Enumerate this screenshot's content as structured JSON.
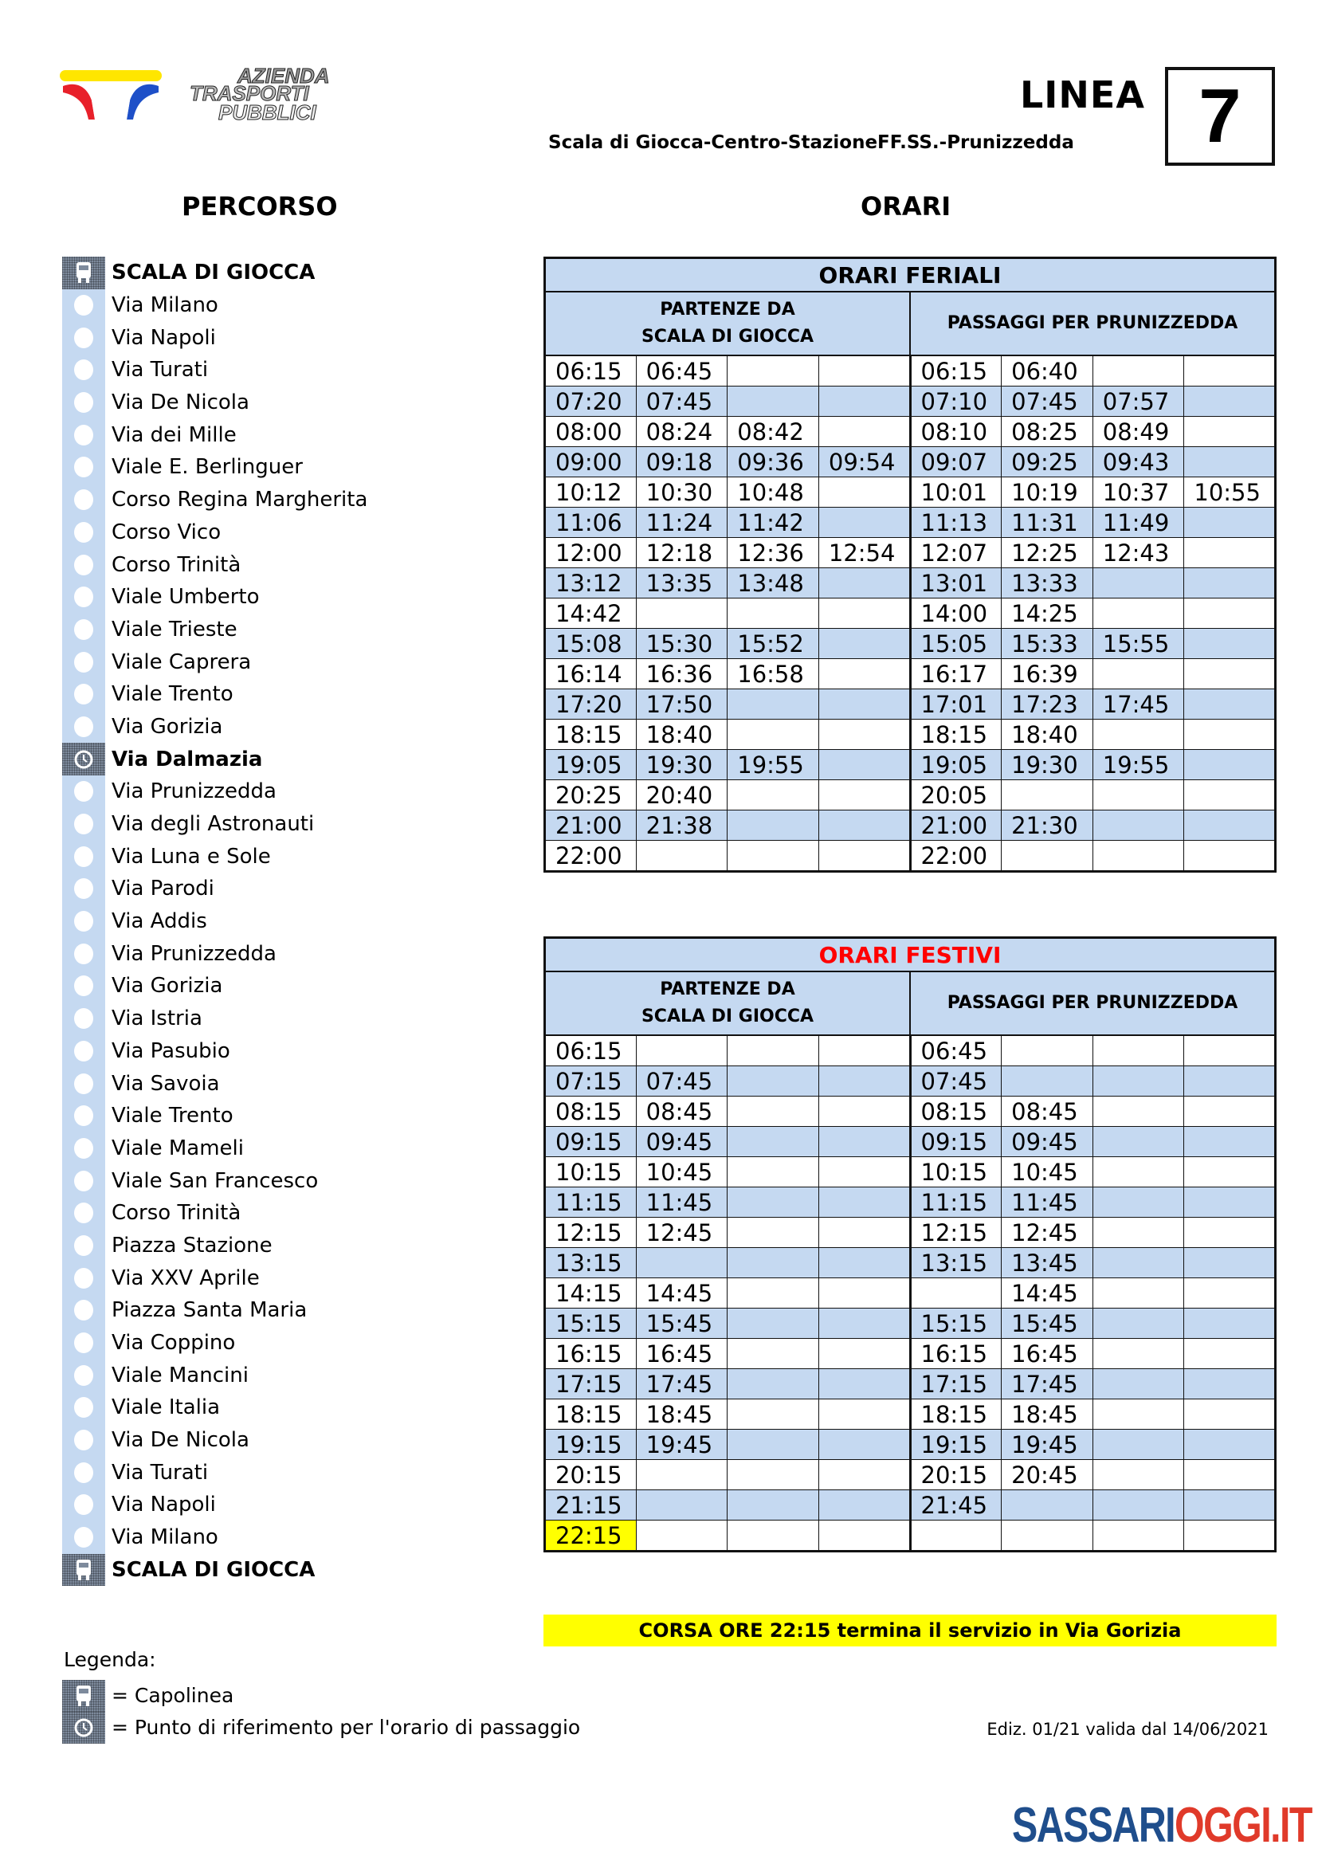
{
  "header": {
    "company_logo_text": "Azienda Trasporti Pubblici",
    "linea_label": "LINEA",
    "linea_number": "7",
    "route_name": "Scala di Giocca-Centro-StazioneFF.SS.-Prunizzedda"
  },
  "sections": {
    "percorso": "PERCORSO",
    "orari": "ORARI"
  },
  "colors": {
    "table_band": "#c5d9f1",
    "festivi_title": "#ff0000",
    "highlight": "#ffff00",
    "brand_blue": "#1f4e8c",
    "brand_red": "#e03a2a"
  },
  "stops": [
    {
      "name": "SCALA DI GIOCCA",
      "icon": "bus-icon",
      "bold": true
    },
    {
      "name": "Via Milano"
    },
    {
      "name": "Via Napoli"
    },
    {
      "name": "Via Turati"
    },
    {
      "name": "Via De Nicola"
    },
    {
      "name": "Via dei Mille"
    },
    {
      "name": "Viale E. Berlinguer"
    },
    {
      "name": "Corso Regina Margherita"
    },
    {
      "name": "Corso Vico"
    },
    {
      "name": "Corso Trinità"
    },
    {
      "name": "Viale Umberto"
    },
    {
      "name": "Viale Trieste"
    },
    {
      "name": "Viale Caprera"
    },
    {
      "name": "Viale Trento"
    },
    {
      "name": "Via Gorizia"
    },
    {
      "name": "Via Dalmazia",
      "icon": "clock-icon",
      "bold": true
    },
    {
      "name": "Via Prunizzedda"
    },
    {
      "name": "Via degli Astronauti"
    },
    {
      "name": "Via Luna e Sole"
    },
    {
      "name": "Via Parodi"
    },
    {
      "name": "Via Addis"
    },
    {
      "name": "Via Prunizzedda"
    },
    {
      "name": "Via Gorizia"
    },
    {
      "name": "Via Istria"
    },
    {
      "name": "Via Pasubio"
    },
    {
      "name": "Via Savoia"
    },
    {
      "name": "Viale Trento"
    },
    {
      "name": "Viale Mameli"
    },
    {
      "name": "Viale San Francesco"
    },
    {
      "name": "Corso Trinità"
    },
    {
      "name": "Piazza Stazione"
    },
    {
      "name": "Via XXV Aprile"
    },
    {
      "name": "Piazza Santa Maria"
    },
    {
      "name": "Via Coppino"
    },
    {
      "name": "Viale Mancini"
    },
    {
      "name": "Viale Italia"
    },
    {
      "name": "Via De Nicola"
    },
    {
      "name": "Via Turati"
    },
    {
      "name": "Via Napoli"
    },
    {
      "name": "Via Milano"
    },
    {
      "name": "SCALA DI GIOCCA",
      "icon": "bus-icon",
      "bold": true
    }
  ],
  "feriali": {
    "title": "ORARI FERIALI",
    "col_left": "PARTENZE DA\nSCALA DI GIOCCA",
    "col_right": "PASSAGGI PER PRUNIZZEDDA",
    "rows": [
      [
        "06:15",
        "06:45",
        "",
        "",
        "06:15",
        "06:40",
        "",
        ""
      ],
      [
        "07:20",
        "07:45",
        "",
        "",
        "07:10",
        "07:45",
        "07:57",
        ""
      ],
      [
        "08:00",
        "08:24",
        "08:42",
        "",
        "08:10",
        "08:25",
        "08:49",
        ""
      ],
      [
        "09:00",
        "09:18",
        "09:36",
        "09:54",
        "09:07",
        "09:25",
        "09:43",
        ""
      ],
      [
        "10:12",
        "10:30",
        "10:48",
        "",
        "10:01",
        "10:19",
        "10:37",
        "10:55"
      ],
      [
        "11:06",
        "11:24",
        "11:42",
        "",
        "11:13",
        "11:31",
        "11:49",
        ""
      ],
      [
        "12:00",
        "12:18",
        "12:36",
        "12:54",
        "12:07",
        "12:25",
        "12:43",
        ""
      ],
      [
        "13:12",
        "13:35",
        "13:48",
        "",
        "13:01",
        "13:33",
        "",
        ""
      ],
      [
        "14:42",
        "",
        "",
        "",
        "14:00",
        "14:25",
        "",
        ""
      ],
      [
        "15:08",
        "15:30",
        "15:52",
        "",
        "15:05",
        "15:33",
        "15:55",
        ""
      ],
      [
        "16:14",
        "16:36",
        "16:58",
        "",
        "16:17",
        "16:39",
        "",
        ""
      ],
      [
        "17:20",
        "17:50",
        "",
        "",
        "17:01",
        "17:23",
        "17:45",
        ""
      ],
      [
        "18:15",
        "18:40",
        "",
        "",
        "18:15",
        "18:40",
        "",
        ""
      ],
      [
        "19:05",
        "19:30",
        "19:55",
        "",
        "19:05",
        "19:30",
        "19:55",
        ""
      ],
      [
        "20:25",
        "20:40",
        "",
        "",
        "20:05",
        "",
        "",
        ""
      ],
      [
        "21:00",
        "21:38",
        "",
        "",
        "21:00",
        "21:30",
        "",
        ""
      ],
      [
        "22:00",
        "",
        "",
        "",
        "22:00",
        "",
        "",
        ""
      ]
    ]
  },
  "festivi": {
    "title": "ORARI FESTIVI",
    "col_left": "PARTENZE DA\nSCALA DI GIOCCA",
    "col_right": "PASSAGGI PER PRUNIZZEDDA",
    "highlighted_time": "22:15",
    "rows": [
      [
        "06:15",
        "",
        "",
        "",
        "06:45",
        "",
        "",
        ""
      ],
      [
        "07:15",
        "07:45",
        "",
        "",
        "07:45",
        "",
        "",
        ""
      ],
      [
        "08:15",
        "08:45",
        "",
        "",
        "08:15",
        "08:45",
        "",
        ""
      ],
      [
        "09:15",
        "09:45",
        "",
        "",
        "09:15",
        "09:45",
        "",
        ""
      ],
      [
        "10:15",
        "10:45",
        "",
        "",
        "10:15",
        "10:45",
        "",
        ""
      ],
      [
        "11:15",
        "11:45",
        "",
        "",
        "11:15",
        "11:45",
        "",
        ""
      ],
      [
        "12:15",
        "12:45",
        "",
        "",
        "12:15",
        "12:45",
        "",
        ""
      ],
      [
        "13:15",
        "",
        "",
        "",
        "13:15",
        "13:45",
        "",
        ""
      ],
      [
        "14:15",
        "14:45",
        "",
        "",
        "",
        "14:45",
        "",
        ""
      ],
      [
        "15:15",
        "15:45",
        "",
        "",
        "15:15",
        "15:45",
        "",
        ""
      ],
      [
        "16:15",
        "16:45",
        "",
        "",
        "16:15",
        "16:45",
        "",
        ""
      ],
      [
        "17:15",
        "17:45",
        "",
        "",
        "17:15",
        "17:45",
        "",
        ""
      ],
      [
        "18:15",
        "18:45",
        "",
        "",
        "18:15",
        "18:45",
        "",
        ""
      ],
      [
        "19:15",
        "19:45",
        "",
        "",
        "19:15",
        "19:45",
        "",
        ""
      ],
      [
        "20:15",
        "",
        "",
        "",
        "20:15",
        "20:45",
        "",
        ""
      ],
      [
        "21:15",
        "",
        "",
        "",
        "21:45",
        "",
        "",
        ""
      ],
      [
        "22:15",
        "",
        "",
        "",
        "",
        "",
        "",
        ""
      ]
    ]
  },
  "note": "CORSA ORE  22:15 termina il servizio in Via Gorizia",
  "legend": {
    "title": "Legenda:",
    "capolinea": "= Capolinea",
    "riferimento": "= Punto di riferimento per l'orario di passaggio"
  },
  "edition": "Ediz. 01/21 valida dal 14/06/2021",
  "watermark": {
    "part1": "SASSARI",
    "part2": "OGGI.IT"
  }
}
